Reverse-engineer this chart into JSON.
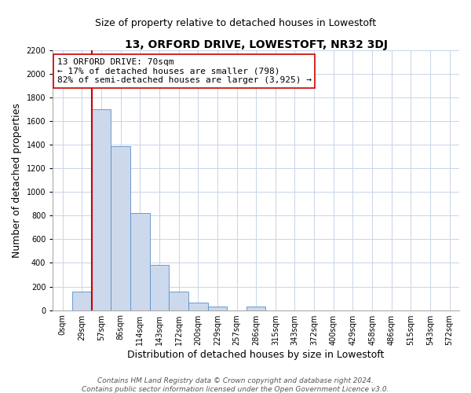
{
  "title": "13, ORFORD DRIVE, LOWESTOFT, NR32 3DJ",
  "subtitle": "Size of property relative to detached houses in Lowestoft",
  "xlabel": "Distribution of detached houses by size in Lowestoft",
  "ylabel": "Number of detached properties",
  "bar_labels": [
    "0sqm",
    "29sqm",
    "57sqm",
    "86sqm",
    "114sqm",
    "143sqm",
    "172sqm",
    "200sqm",
    "229sqm",
    "257sqm",
    "286sqm",
    "315sqm",
    "343sqm",
    "372sqm",
    "400sqm",
    "429sqm",
    "458sqm",
    "486sqm",
    "515sqm",
    "543sqm",
    "572sqm"
  ],
  "bar_heights": [
    0,
    155,
    1700,
    1390,
    820,
    385,
    160,
    65,
    28,
    0,
    28,
    0,
    0,
    0,
    0,
    0,
    0,
    0,
    0,
    0,
    0
  ],
  "bar_color": "#ccd9ec",
  "bar_edge_color": "#5b8dc8",
  "vline_color": "#cc0000",
  "annotation_text_line1": "13 ORFORD DRIVE: 70sqm",
  "annotation_text_line2": "← 17% of detached houses are smaller (798)",
  "annotation_text_line3": "82% of semi-detached houses are larger (3,925) →",
  "annotation_box_color": "#ffffff",
  "annotation_box_edge": "#cc0000",
  "ylim": [
    0,
    2200
  ],
  "yticks": [
    0,
    200,
    400,
    600,
    800,
    1000,
    1200,
    1400,
    1600,
    1800,
    2000,
    2200
  ],
  "grid_color": "#c8d4e8",
  "footer1": "Contains HM Land Registry data © Crown copyright and database right 2024.",
  "footer2": "Contains public sector information licensed under the Open Government Licence v3.0.",
  "title_fontsize": 10,
  "subtitle_fontsize": 9,
  "axis_label_fontsize": 9,
  "tick_fontsize": 7,
  "annotation_fontsize": 8,
  "footer_fontsize": 6.5,
  "vline_bin_index": 2
}
